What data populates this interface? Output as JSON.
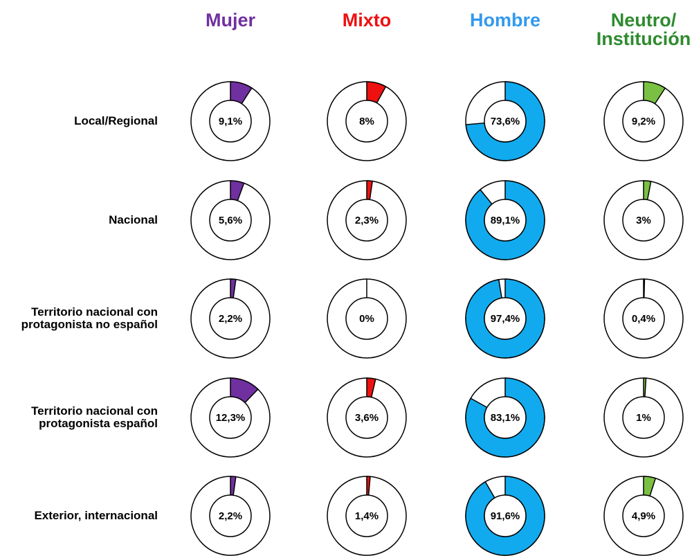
{
  "chart_data": {
    "type": "donut",
    "categories": [
      "Local/Regional",
      "Nacional",
      "Territorio nacional con\nprotagonista no español",
      "Territorio nacional con\nprotagonista español",
      "Exterior, internacional"
    ],
    "series": [
      {
        "name": "Mujer",
        "color": "#7030a0",
        "values": [
          9.1,
          5.6,
          2.2,
          12.3,
          2.2
        ],
        "value_labels": [
          "9,1%",
          "5,6%",
          "2,2%",
          "12,3%",
          "2,2%"
        ]
      },
      {
        "name": "Mixto",
        "color": "#ee1111",
        "values": [
          8,
          2.3,
          0,
          3.6,
          1.4
        ],
        "value_labels": [
          "8%",
          "2,3%",
          "0%",
          "3,6%",
          "1,4%"
        ]
      },
      {
        "name": "Hombre",
        "color": "#12aaee",
        "values": [
          73.6,
          89.1,
          97.4,
          83.1,
          91.6
        ],
        "value_labels": [
          "73,6%",
          "89,1%",
          "97,4%",
          "83,1%",
          "91,6%"
        ]
      },
      {
        "name": "Neutro/\nInstitución",
        "color": "#7ac143",
        "values": [
          9.2,
          3,
          0.4,
          1,
          4.9
        ],
        "value_labels": [
          "9,2%",
          "3%",
          "0,4%",
          "1%",
          "4,9%"
        ]
      }
    ],
    "header_colors": [
      "#7030a0",
      "#ee1111",
      "#3399ee",
      "#2e8b2e"
    ]
  }
}
